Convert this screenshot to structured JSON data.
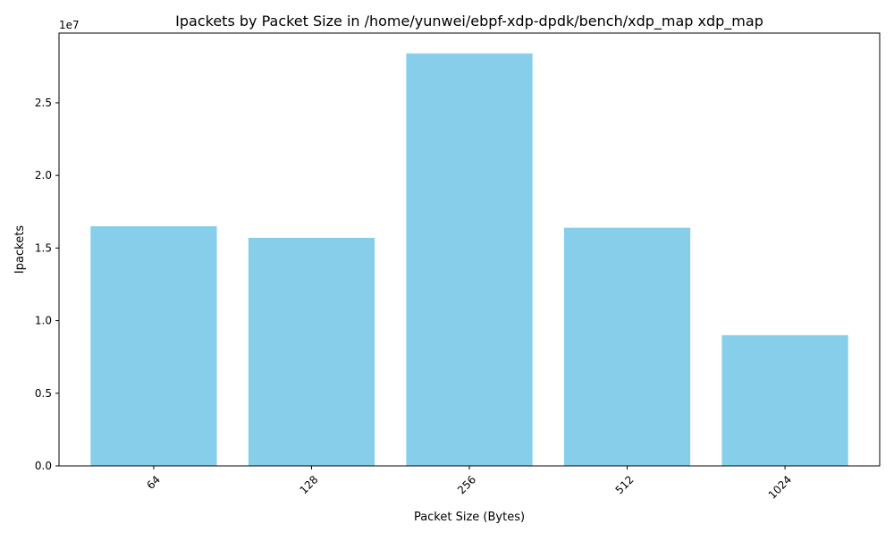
{
  "chart_data": {
    "type": "bar",
    "title": "Ipackets by Packet Size in /home/yunwei/ebpf-xdp-dpdk/bench/xdp_map xdp_map",
    "xlabel": "Packet Size (Bytes)",
    "ylabel": "Ipackets",
    "categories": [
      "64",
      "128",
      "256",
      "512",
      "1024"
    ],
    "values": [
      16500000,
      15700000,
      28400000,
      16400000,
      9000000
    ],
    "ylim": [
      0,
      29800000
    ],
    "y_ticks": [
      0,
      5000000,
      10000000,
      15000000,
      20000000,
      25000000
    ],
    "y_tick_labels": [
      "0.0",
      "0.5",
      "1.0",
      "1.5",
      "2.0",
      "2.5"
    ],
    "y_offset_label": "1e7",
    "x_tick_rotation": "45deg",
    "bar_color": "#87CEEB",
    "grid": false,
    "legend": "none"
  }
}
